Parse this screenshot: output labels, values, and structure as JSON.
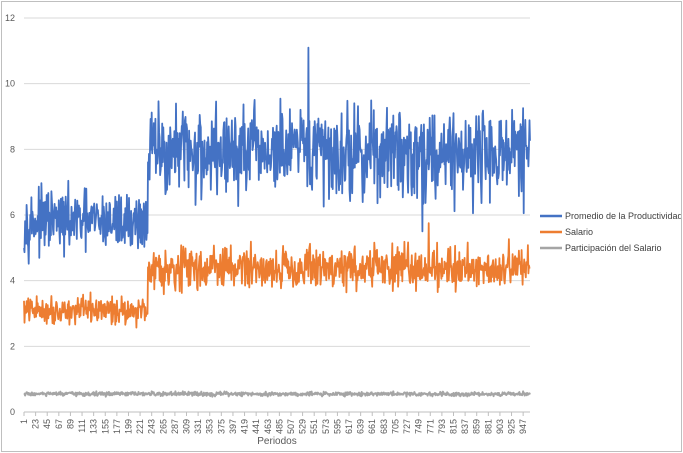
{
  "chart_data": {
    "type": "line",
    "xlabel": "Periodos",
    "ylabel": "",
    "title": "",
    "ylim": [
      0,
      12
    ],
    "y_ticks": [
      0,
      2,
      4,
      6,
      8,
      10,
      12
    ],
    "x_range": [
      1,
      960
    ],
    "x_tick_labels": [
      "1",
      "23",
      "45",
      "67",
      "89",
      "111",
      "133",
      "155",
      "177",
      "199",
      "221",
      "243",
      "265",
      "287",
      "309",
      "331",
      "353",
      "375",
      "397",
      "419",
      "441",
      "463",
      "485",
      "507",
      "529",
      "551",
      "573",
      "595",
      "617",
      "639",
      "661",
      "683",
      "705",
      "727",
      "749",
      "771",
      "793",
      "815",
      "837",
      "859",
      "881",
      "903",
      "925",
      "947"
    ],
    "grid": true,
    "legend_position": "right",
    "series": [
      {
        "name": "Promedio de la Productividad",
        "color": "#4472c4",
        "regime_note_periods": [
          1,
          235,
          236,
          960
        ],
        "x": [
          1,
          235,
          236,
          960
        ],
        "approx_levels": [
          5.8,
          5.8,
          7.9,
          7.9
        ],
        "approx_noise": [
          0.55,
          0.55,
          0.85,
          0.85
        ],
        "notable_points": [
          {
            "x": 540,
            "y": 11.1
          },
          {
            "x": 756,
            "y": 5.5
          }
        ]
      },
      {
        "name": "Salario",
        "color": "#ed7d31",
        "x": [
          1,
          235,
          236,
          960
        ],
        "approx_levels": [
          3.1,
          3.1,
          4.4,
          4.4
        ],
        "approx_noise": [
          0.25,
          0.25,
          0.4,
          0.4
        ],
        "notable_points": [
          {
            "x": 768,
            "y": 5.75
          }
        ]
      },
      {
        "name": "Participación del Salario",
        "color": "#a5a5a5",
        "x": [
          1,
          960
        ],
        "approx_levels": [
          0.55,
          0.55
        ],
        "approx_noise": [
          0.04,
          0.04
        ],
        "notable_points": []
      }
    ]
  }
}
